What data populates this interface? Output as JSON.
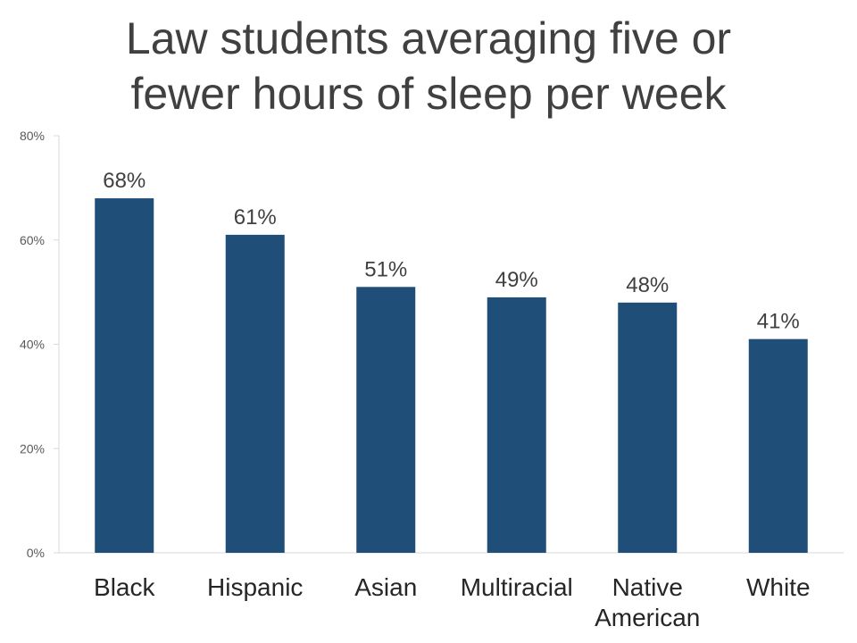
{
  "chart_data": {
    "type": "bar",
    "title_lines": [
      "Law students averaging five or",
      "fewer hours of sleep per week"
    ],
    "categories": [
      [
        "Black"
      ],
      [
        "Hispanic"
      ],
      [
        "Asian"
      ],
      [
        "Multiracial"
      ],
      [
        "Native",
        "American"
      ],
      [
        "White"
      ]
    ],
    "values": [
      68,
      61,
      51,
      49,
      48,
      41
    ],
    "data_labels": [
      "68%",
      "61%",
      "51%",
      "49%",
      "48%",
      "41%"
    ],
    "ylim": [
      0,
      80
    ],
    "yticks": [
      0,
      20,
      40,
      60,
      80
    ],
    "ytick_labels": [
      "0%",
      "20%",
      "40%",
      "60%",
      "80%"
    ],
    "xlabel": "",
    "ylabel": "",
    "grid": false,
    "legend": "none",
    "bar_color": "#1F4E79"
  }
}
